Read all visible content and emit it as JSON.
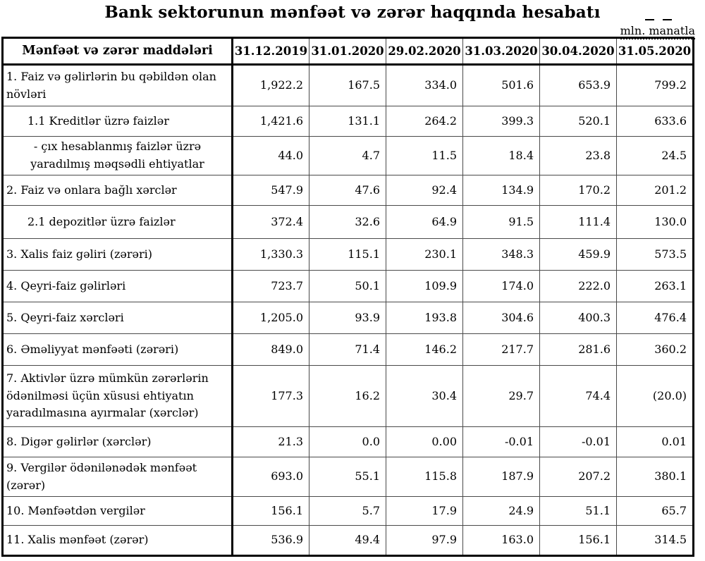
{
  "title": "Bank sektorunun mənfəət və zərər haqqında hesabatı",
  "unit_label": "mln. manatla",
  "table": {
    "header": {
      "items_label": "Mənfəət və zərər maddələri",
      "dates": [
        "31.12.2019",
        "31.01.2020",
        "29.02.2020",
        "31.03.2020",
        "30.04.2020",
        "31.05.2020"
      ]
    },
    "rows": [
      {
        "label": "1. Faiz və gəlirlərin bu qəbildən olan növləri",
        "level": "item",
        "values": [
          "1,922.2",
          "167.5",
          "334.0",
          "501.6",
          "653.9",
          "799.2"
        ]
      },
      {
        "label": "1.1 Kreditlər üzrə faizlər",
        "level": "sub",
        "values": [
          "1,421.6",
          "131.1",
          "264.2",
          "399.3",
          "520.1",
          "633.6"
        ]
      },
      {
        "label": "-  çıx hesablanmış faizlər üzrə yaradılmış məqsədli ehtiyatlar",
        "level": "dash",
        "values": [
          "44.0",
          "4.7",
          "11.5",
          "18.4",
          "23.8",
          "24.5"
        ]
      },
      {
        "label": "2. Faiz və onlara bağlı xərclər",
        "level": "item",
        "values": [
          "547.9",
          "47.6",
          "92.4",
          "134.9",
          "170.2",
          "201.2"
        ]
      },
      {
        "label": "2.1 depozitlər üzrə faizlər",
        "level": "sub",
        "values": [
          "372.4",
          "32.6",
          "64.9",
          "91.5",
          "111.4",
          "130.0"
        ]
      },
      {
        "label": "3. Xalis faiz gəliri (zərəri)",
        "level": "item",
        "values": [
          "1,330.3",
          "115.1",
          "230.1",
          "348.3",
          "459.9",
          "573.5"
        ]
      },
      {
        "label": "4. Qeyri-faiz gəlirləri",
        "level": "item",
        "values": [
          "723.7",
          "50.1",
          "109.9",
          "174.0",
          "222.0",
          "263.1"
        ]
      },
      {
        "label": "5. Qeyri-faiz xərcləri",
        "level": "item",
        "values": [
          "1,205.0",
          "93.9",
          "193.8",
          "304.6",
          "400.3",
          "476.4"
        ]
      },
      {
        "label": "6. Əməliyyat mənfəəti (zərəri)",
        "level": "item",
        "values": [
          "849.0",
          "71.4",
          "146.2",
          "217.7",
          "281.6",
          "360.2"
        ]
      },
      {
        "label": "7. Aktivlər üzrə mümkün zərərlərin ödənilməsi üçün xüsusi ehtiyatın yaradılmasına ayırmalar (xərclər)",
        "level": "item",
        "values": [
          "177.3",
          "16.2",
          "30.4",
          "29.7",
          "74.4",
          "(20.0)"
        ]
      },
      {
        "label": "8. Digər gəlirlər (xərclər)",
        "level": "item",
        "values": [
          "21.3",
          "0.0",
          "0.00",
          "-0.01",
          "-0.01",
          "0.01"
        ]
      },
      {
        "label": "9. Vergilər ödənilənədək mənfəət (zərər)",
        "level": "item",
        "values": [
          "693.0",
          "55.1",
          "115.8",
          "187.9",
          "207.2",
          "380.1"
        ]
      },
      {
        "label": "10. Mənfəətdən vergilər",
        "level": "item",
        "values": [
          "156.1",
          "5.7",
          "17.9",
          "24.9",
          "51.1",
          "65.7"
        ]
      },
      {
        "label": "11. Xalis mənfəət (zərər)",
        "level": "item",
        "values": [
          "536.9",
          "49.4",
          "97.9",
          "163.0",
          "156.1",
          "314.5"
        ]
      }
    ]
  },
  "colors": {
    "text": "#000000",
    "background": "#ffffff",
    "thick_border": "#000000",
    "thin_border": "#4a4a4a"
  }
}
